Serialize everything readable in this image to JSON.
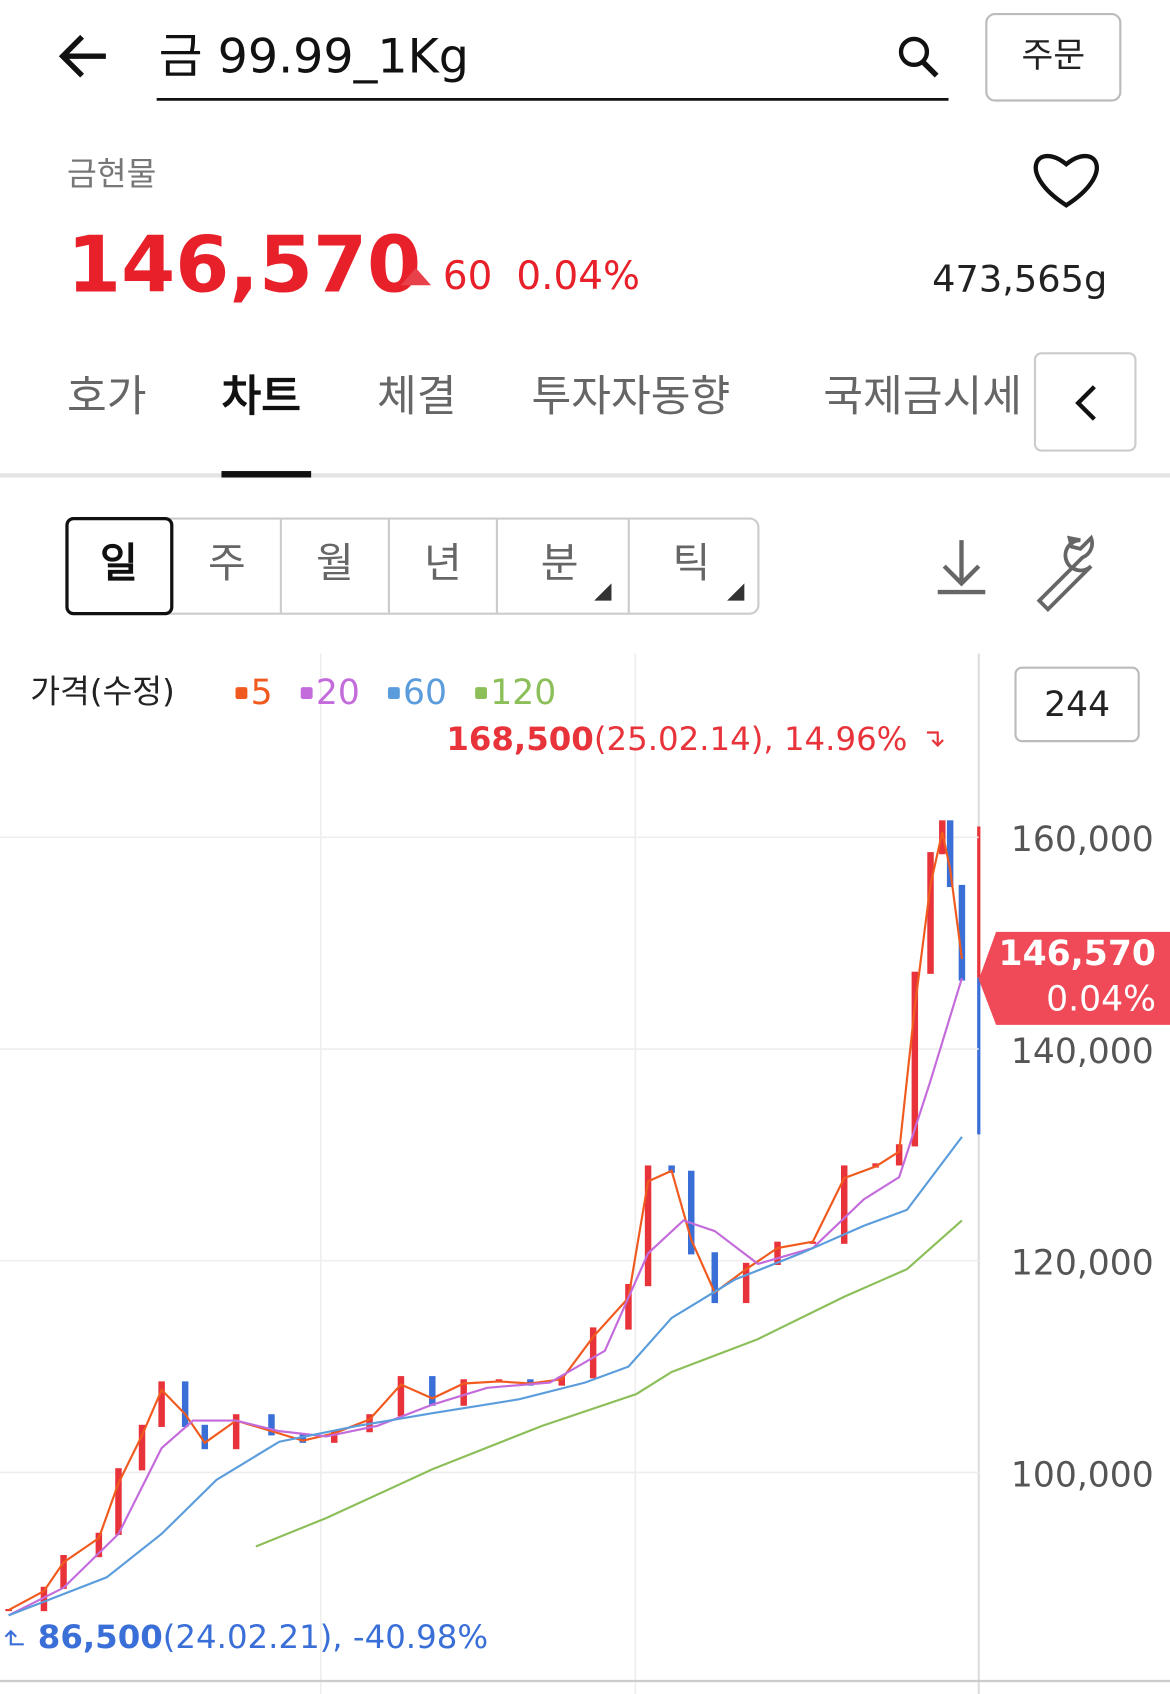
{
  "header": {
    "search": "금 99.99_1Kg",
    "order_button": "주문"
  },
  "quote": {
    "category": "금현물",
    "price": "146,570",
    "change": "60",
    "change_rate": "0.04%",
    "volume": "473,565g"
  },
  "tabs": [
    "호가",
    "차트",
    "체결",
    "투자자동향",
    "국제금시세"
  ],
  "periods": [
    "일",
    "주",
    "월",
    "년",
    "분",
    "틱"
  ],
  "chart_data": {
    "type": "candlestick",
    "title": "가격(수정)",
    "count": "244",
    "xlim": [
      -2.2,
      247.3
    ],
    "ylim": [
      80400,
      177350
    ],
    "yticks": [
      {
        "value": 100000,
        "label": "100,000"
      },
      {
        "value": 120000,
        "label": "120,000"
      },
      {
        "value": 140000,
        "label": "140,000"
      },
      {
        "value": 160000,
        "label": "160,000"
      }
    ],
    "grid": true,
    "candles": {
      "up_color": "#e8333b",
      "down_color": "#3a6fd8",
      "x": [
        0,
        9,
        14,
        23,
        28,
        34,
        39,
        45,
        50,
        58,
        67,
        75,
        83,
        92,
        100,
        108,
        116,
        125,
        133,
        141,
        149,
        158,
        163,
        169,
        174,
        180,
        188,
        196,
        205,
        213,
        221,
        227,
        231,
        235,
        238,
        240,
        243
      ],
      "values": [
        87000,
        89100,
        92100,
        94200,
        100300,
        104400,
        108500,
        104400,
        102300,
        105400,
        103600,
        102900,
        103900,
        105400,
        109000,
        106400,
        108700,
        108700,
        108300,
        109000,
        113600,
        117700,
        128900,
        128400,
        120700,
        116100,
        119700,
        121700,
        121700,
        128900,
        129100,
        130900,
        147200,
        158500,
        161500,
        155400,
        146570
      ]
    },
    "series": [
      {
        "name": "5",
        "color": "#f05a1e",
        "x": [
          0,
          9,
          14,
          23,
          28,
          34,
          39,
          45,
          50,
          58,
          67,
          75,
          83,
          92,
          100,
          108,
          116,
          125,
          133,
          141,
          149,
          158,
          163,
          169,
          174,
          180,
          188,
          196,
          205,
          213,
          221,
          227,
          231,
          235,
          238,
          240,
          243
        ],
        "values": [
          87000,
          88800,
          91500,
          93800,
          99000,
          103500,
          107800,
          105500,
          102800,
          104900,
          103900,
          103000,
          103700,
          105000,
          108300,
          107000,
          108400,
          108600,
          108400,
          108800,
          112800,
          116500,
          127500,
          128500,
          122000,
          117000,
          119200,
          121200,
          121800,
          127800,
          128900,
          130300,
          144000,
          155500,
          160500,
          157000,
          148500
        ]
      },
      {
        "name": "20",
        "color": "#c46bdc",
        "x": [
          0,
          14,
          28,
          39,
          47,
          58,
          69,
          81,
          94,
          108,
          122,
          138,
          152,
          163,
          172,
          180,
          191,
          205,
          218,
          227,
          235,
          243
        ],
        "values": [
          86500,
          89100,
          94200,
          102300,
          104900,
          104900,
          103900,
          103400,
          104400,
          106400,
          108000,
          108500,
          111500,
          120700,
          123800,
          122800,
          119700,
          121200,
          125800,
          127900,
          137000,
          146700
        ]
      },
      {
        "name": "60",
        "color": "#5b9ddc",
        "x": [
          0,
          25,
          39,
          53,
          69,
          89,
          108,
          130,
          147,
          158,
          169,
          185,
          202,
          218,
          229,
          243
        ],
        "values": [
          86500,
          90100,
          94200,
          99300,
          102900,
          104400,
          105600,
          106900,
          108500,
          110000,
          114600,
          118200,
          120700,
          123300,
          124800,
          131700
        ]
      },
      {
        "name": "120",
        "color": "#8cbf5a",
        "x": [
          63,
          81,
          108,
          136,
          160,
          169,
          191,
          213,
          229,
          243
        ],
        "values": [
          93000,
          95700,
          100300,
          104400,
          107400,
          109500,
          112600,
          116600,
          119200,
          123800
        ]
      }
    ],
    "max_annotation": {
      "value": "168,500",
      "detail": "(25.02.14), 14.96%"
    },
    "min_annotation": {
      "value": "86,500",
      "detail": "(24.02.21), -40.98%"
    },
    "last": {
      "value": 146570,
      "label": "146,570",
      "change_label": "0.04%"
    }
  }
}
